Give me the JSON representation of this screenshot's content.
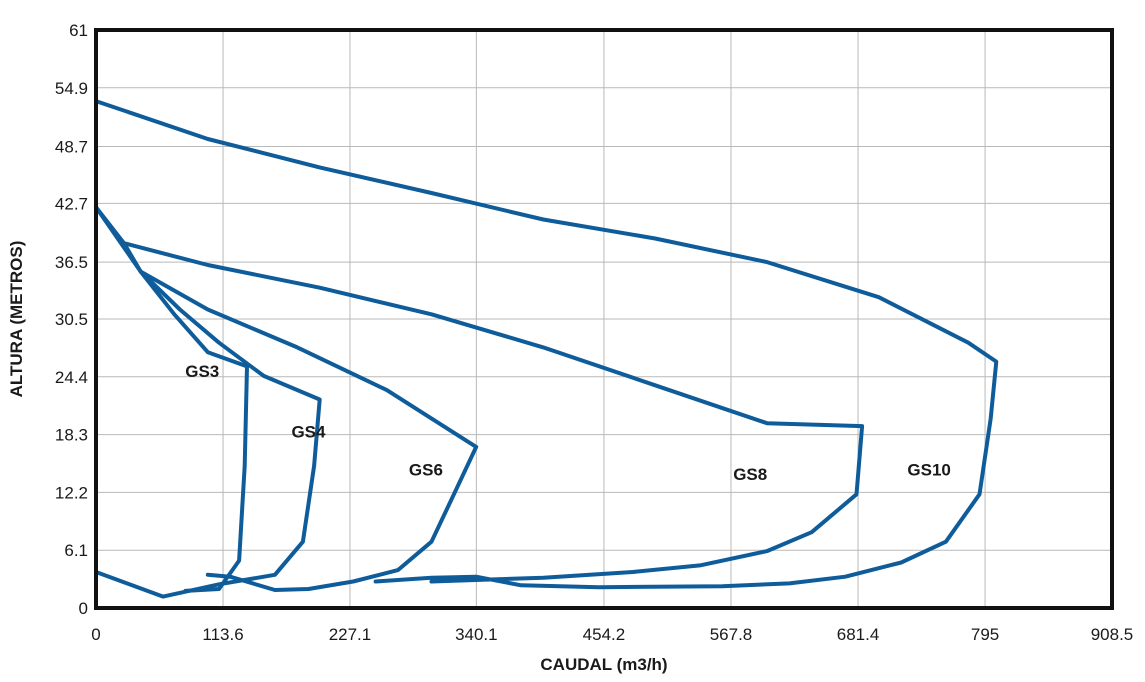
{
  "chart_data": {
    "type": "line",
    "xlabel": "CAUDAL (m3/h)",
    "ylabel": "ALTURA (METROS)",
    "xlim": [
      0,
      908.5
    ],
    "ylim": [
      0,
      61
    ],
    "x_ticks": [
      "0",
      "113.6",
      "227.1",
      "340.1",
      "454.2",
      "567.8",
      "681.4",
      "795",
      "908.5"
    ],
    "y_ticks": [
      "0",
      "6.1",
      "12.2",
      "18.3",
      "24.4",
      "30.5",
      "36.5",
      "42.7",
      "48.7",
      "54.9",
      "61"
    ],
    "grid": true,
    "line_color": "#0f5c9b",
    "series": [
      {
        "name": "GS3",
        "label_at": [
          95,
          24.4
        ],
        "points": [
          [
            0,
            42.3
          ],
          [
            40,
            35.5
          ],
          [
            70,
            31
          ],
          [
            100,
            27
          ],
          [
            135,
            25.5
          ],
          [
            133,
            15
          ],
          [
            128,
            5
          ],
          [
            110,
            2
          ],
          [
            80,
            1.8
          ]
        ]
      },
      {
        "name": "GS4",
        "label_at": [
          190,
          18
        ],
        "points": [
          [
            0,
            42.3
          ],
          [
            25,
            38.5
          ],
          [
            40,
            35.5
          ],
          [
            75,
            31.5
          ],
          [
            110,
            28
          ],
          [
            150,
            24.5
          ],
          [
            200,
            22
          ],
          [
            195,
            15
          ],
          [
            185,
            7
          ],
          [
            160,
            3.5
          ],
          [
            110,
            2.5
          ],
          [
            60,
            1.2
          ],
          [
            0,
            3.8
          ]
        ]
      },
      {
        "name": "GS6",
        "label_at": [
          295,
          14
        ],
        "points": [
          [
            40,
            35.5
          ],
          [
            100,
            31.5
          ],
          [
            180,
            27.5
          ],
          [
            260,
            23
          ],
          [
            340,
            17
          ],
          [
            320,
            12
          ],
          [
            300,
            7
          ],
          [
            270,
            4
          ],
          [
            230,
            2.8
          ],
          [
            190,
            2
          ],
          [
            160,
            1.9
          ],
          [
            120,
            3.3
          ],
          [
            100,
            3.5
          ]
        ]
      },
      {
        "name": "GS8",
        "label_at": [
          585,
          13.5
        ],
        "points": [
          [
            25,
            38.5
          ],
          [
            100,
            36.2
          ],
          [
            200,
            33.8
          ],
          [
            300,
            31
          ],
          [
            400,
            27.5
          ],
          [
            500,
            23.5
          ],
          [
            600,
            19.5
          ],
          [
            685,
            19.2
          ],
          [
            680,
            12
          ],
          [
            640,
            8
          ],
          [
            600,
            6
          ],
          [
            540,
            4.5
          ],
          [
            480,
            3.8
          ],
          [
            400,
            3.2
          ],
          [
            300,
            2.8
          ]
        ]
      },
      {
        "name": "GS10",
        "label_at": [
          745,
          14
        ],
        "points": [
          [
            0,
            53.5
          ],
          [
            100,
            49.5
          ],
          [
            200,
            46.5
          ],
          [
            300,
            43.8
          ],
          [
            400,
            41
          ],
          [
            500,
            39
          ],
          [
            600,
            36.5
          ],
          [
            700,
            32.8
          ],
          [
            780,
            28
          ],
          [
            805,
            26
          ],
          [
            800,
            20
          ],
          [
            790,
            12
          ],
          [
            760,
            7
          ],
          [
            720,
            4.8
          ],
          [
            670,
            3.3
          ],
          [
            620,
            2.6
          ],
          [
            560,
            2.3
          ],
          [
            450,
            2.2
          ],
          [
            380,
            2.4
          ],
          [
            340,
            3.3
          ],
          [
            300,
            3.2
          ],
          [
            250,
            2.8
          ]
        ]
      }
    ]
  }
}
